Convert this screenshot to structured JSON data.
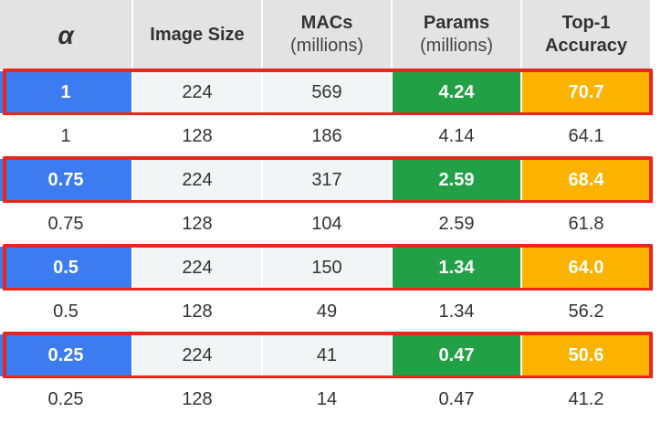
{
  "table": {
    "header": [
      {
        "lines": [
          "α"
        ]
      },
      {
        "lines": [
          "Image Size"
        ]
      },
      {
        "lines": [
          "MACs",
          "(millions)"
        ]
      },
      {
        "lines": [
          "Params",
          "(millions)"
        ]
      },
      {
        "lines": [
          "Top-1",
          "Accuracy"
        ]
      }
    ],
    "rows": [
      {
        "highlight": true,
        "cells": [
          "1",
          "224",
          "569",
          "4.24",
          "70.7"
        ]
      },
      {
        "highlight": false,
        "cells": [
          "1",
          "128",
          "186",
          "4.14",
          "64.1"
        ]
      },
      {
        "highlight": true,
        "cells": [
          "0.75",
          "224",
          "317",
          "2.59",
          "68.4"
        ]
      },
      {
        "highlight": false,
        "cells": [
          "0.75",
          "128",
          "104",
          "2.59",
          "61.8"
        ]
      },
      {
        "highlight": true,
        "cells": [
          "0.5",
          "224",
          "150",
          "1.34",
          "64.0"
        ]
      },
      {
        "highlight": false,
        "cells": [
          "0.5",
          "128",
          "49",
          "1.34",
          "56.2"
        ]
      },
      {
        "highlight": true,
        "cells": [
          "0.25",
          "224",
          "41",
          "0.47",
          "50.6"
        ]
      },
      {
        "highlight": false,
        "cells": [
          "0.25",
          "128",
          "14",
          "0.47",
          "41.2"
        ]
      }
    ]
  }
}
